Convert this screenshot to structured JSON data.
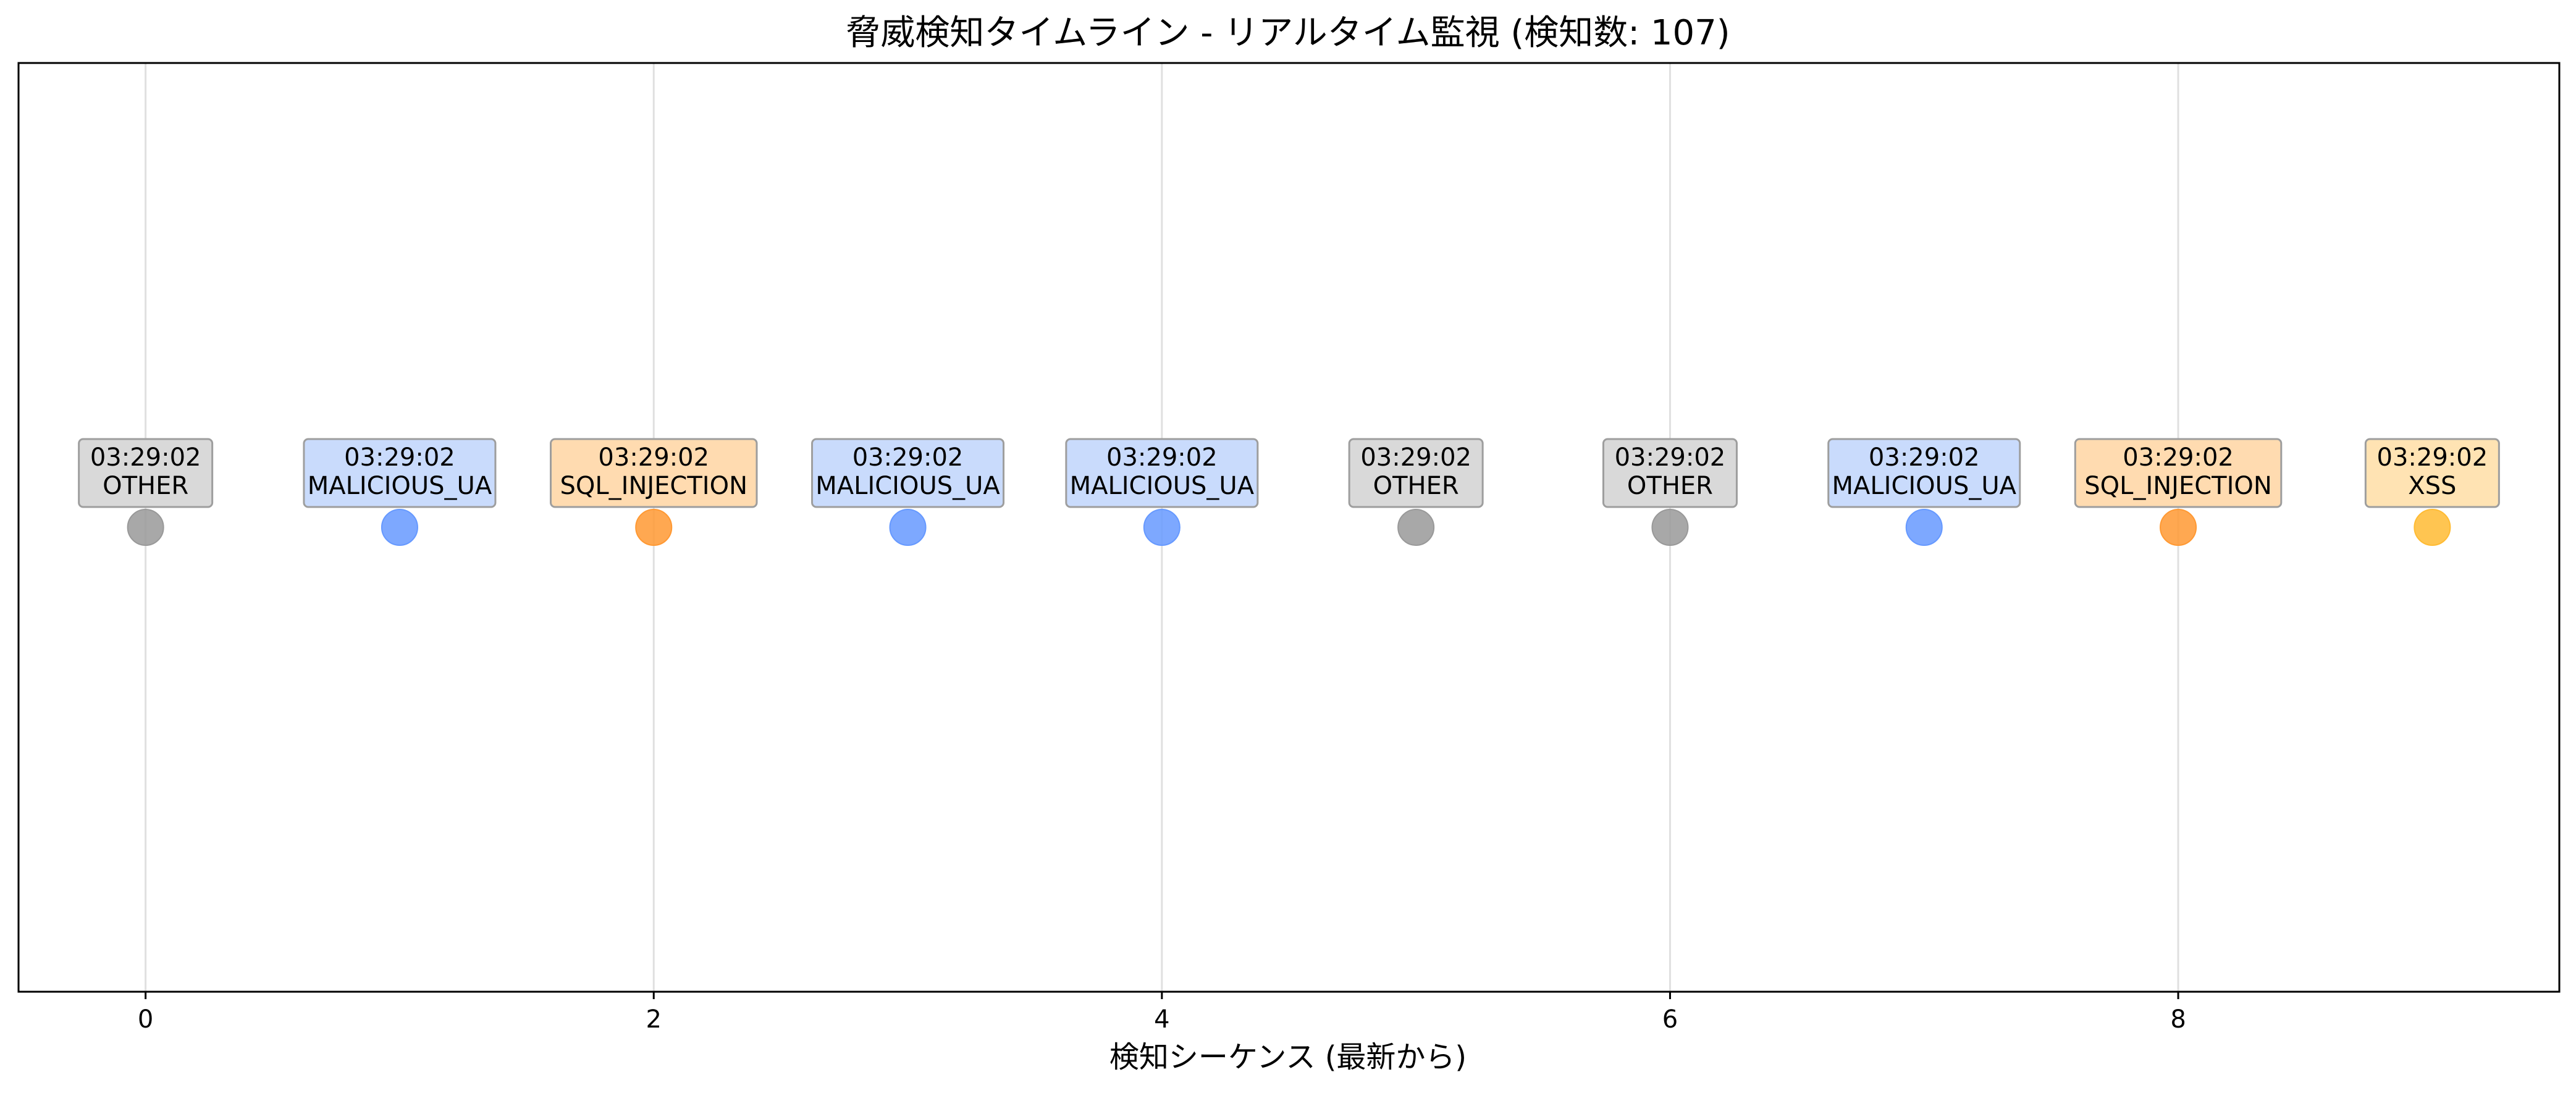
{
  "chart_data": {
    "type": "scatter",
    "title": "脅威検知タイムライン - リアルタイム監視 (検知数: 107)",
    "xlabel": "検知シーケンス (最新から)",
    "ylabel": "",
    "xlim": [
      -0.5,
      9.5
    ],
    "ylim": [
      0,
      1
    ],
    "xticks": [
      0,
      2,
      4,
      6,
      8
    ],
    "show_yticks": false,
    "grid": "x",
    "points": [
      {
        "x": 0,
        "y": 0.5,
        "time": "03:29:02",
        "type": "OTHER",
        "color": "#999999",
        "box_color": "#d9d9d9"
      },
      {
        "x": 1,
        "y": 0.5,
        "time": "03:29:02",
        "type": "MALICIOUS_UA",
        "color": "#6699ff",
        "box_color": "#c9dbfc"
      },
      {
        "x": 2,
        "y": 0.5,
        "time": "03:29:02",
        "type": "SQL_INJECTION",
        "color": "#ff9933",
        "box_color": "#ffdbb0"
      },
      {
        "x": 3,
        "y": 0.5,
        "time": "03:29:02",
        "type": "MALICIOUS_UA",
        "color": "#6699ff",
        "box_color": "#c9dbfc"
      },
      {
        "x": 4,
        "y": 0.5,
        "time": "03:29:02",
        "type": "MALICIOUS_UA",
        "color": "#6699ff",
        "box_color": "#c9dbfc"
      },
      {
        "x": 5,
        "y": 0.5,
        "time": "03:29:02",
        "type": "OTHER",
        "color": "#999999",
        "box_color": "#d9d9d9"
      },
      {
        "x": 6,
        "y": 0.5,
        "time": "03:29:02",
        "type": "OTHER",
        "color": "#999999",
        "box_color": "#d9d9d9"
      },
      {
        "x": 7,
        "y": 0.5,
        "time": "03:29:02",
        "type": "MALICIOUS_UA",
        "color": "#6699ff",
        "box_color": "#c9dbfc"
      },
      {
        "x": 8,
        "y": 0.5,
        "time": "03:29:02",
        "type": "SQL_INJECTION",
        "color": "#ff9933",
        "box_color": "#ffdbb0"
      },
      {
        "x": 9,
        "y": 0.5,
        "time": "03:29:02",
        "type": "XSS",
        "color": "#ffbb33",
        "box_color": "#ffe3b3"
      }
    ]
  }
}
